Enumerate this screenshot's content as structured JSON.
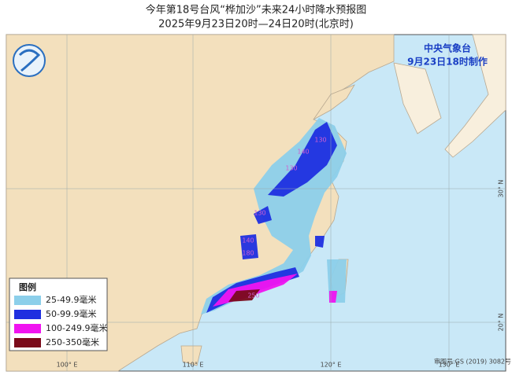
{
  "header": {
    "title": "今年第18号台风“桦加沙”未来24小时降水预报图",
    "subtitle": "2025年9月23日20时—24日20时(北京时)"
  },
  "agency": {
    "name": "中央气象台",
    "issued": "9月23日18时制作"
  },
  "legend": {
    "title": "图例",
    "items": [
      {
        "label": "25-49.9毫米",
        "color": "#8ccfea"
      },
      {
        "label": "50-99.9毫米",
        "color": "#1f2fe0"
      },
      {
        "label": "100-249.9毫米",
        "color": "#f014f0"
      },
      {
        "label": "250-350毫米",
        "color": "#7a0a1a"
      }
    ]
  },
  "grid": {
    "lon_labels": [
      "100° E",
      "110° E",
      "120° E",
      "130° E"
    ],
    "lat_labels": [
      "30° N",
      "20° N"
    ]
  },
  "contour_labels": [
    "130",
    "140",
    "130",
    "130",
    "140",
    "180",
    "250"
  ],
  "footer": {
    "approval": "审图号:GS (2019) 3082号"
  }
}
